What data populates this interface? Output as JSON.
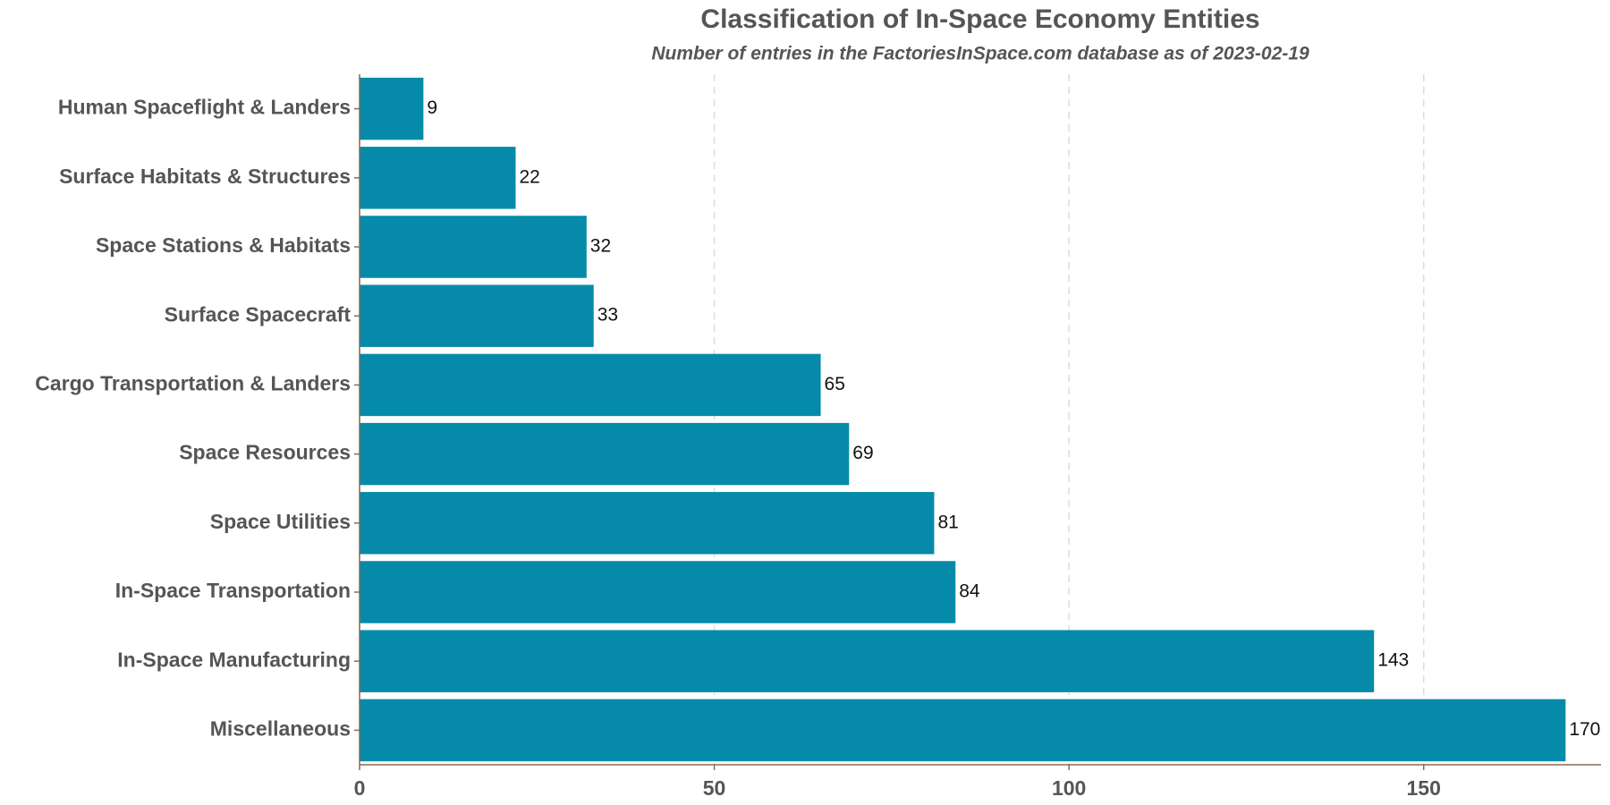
{
  "chart_data": {
    "type": "barh",
    "title": "Classification of In-Space Economy Entities",
    "subtitle": "Number of entries in the FactoriesInSpace.com database as of 2023-02-19",
    "categories": [
      "Human Spaceflight & Landers",
      "Surface Habitats & Structures",
      "Space Stations & Habitats",
      "Surface Spacecraft",
      "Cargo Transportation & Landers",
      "Space Resources",
      "Space Utilities",
      "In-Space Transportation",
      "In-Space Manufacturing",
      "Miscellaneous"
    ],
    "values": [
      9,
      22,
      32,
      33,
      65,
      69,
      81,
      84,
      143,
      170
    ],
    "color": "#058ba9",
    "xlim": [
      0,
      175
    ],
    "xticks": [
      0,
      50,
      100,
      150
    ],
    "grid": true
  }
}
